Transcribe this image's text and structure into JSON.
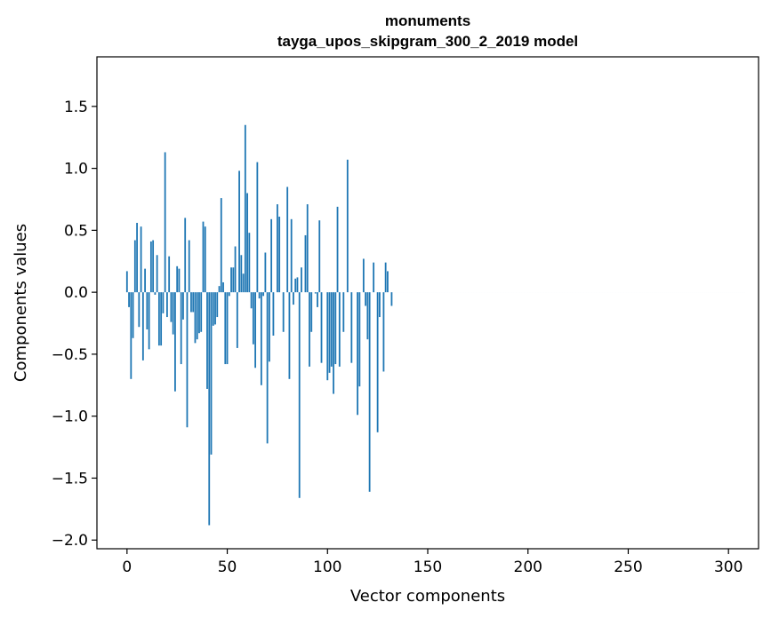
{
  "chart_data": {
    "type": "bar",
    "title": "monuments",
    "subtitle": "tayga_upos_skipgram_300_2_2019 model",
    "xlabel": "Vector components",
    "ylabel": "Components values",
    "xlim": [
      -15,
      315
    ],
    "ylim": [
      -2.07,
      1.9
    ],
    "xticks": [
      0,
      50,
      100,
      150,
      200,
      250,
      300
    ],
    "yticks": [
      -2.0,
      -1.5,
      -1.0,
      -0.5,
      0.0,
      0.5,
      1.0,
      1.5
    ],
    "ytick_labels": [
      "−2.0",
      "−1.5",
      "−1.0",
      "−0.5",
      "0.0",
      "0.5",
      "1.0",
      "1.5"
    ],
    "grid": false,
    "bar_color": "#1f77b4",
    "values": [
      0.17,
      -0.12,
      -0.7,
      -0.37,
      0.42,
      0.56,
      -0.28,
      0.53,
      -0.55,
      0.19,
      -0.3,
      -0.46,
      0.41,
      0.42,
      -0.02,
      0.3,
      -0.43,
      -0.43,
      -0.17,
      1.13,
      -0.2,
      0.29,
      -0.24,
      -0.34,
      -0.8,
      0.21,
      0.19,
      -0.58,
      -0.22,
      0.6,
      -1.09,
      0.42,
      -0.16,
      -0.16,
      -0.41,
      -0.38,
      -0.33,
      -0.32,
      0.57,
      0.53,
      -0.78,
      -1.88,
      -1.31,
      -0.27,
      -0.26,
      -0.2,
      0.05,
      0.76,
      0.08,
      -0.58,
      -0.58,
      -0.03,
      0.2,
      0.2,
      0.37,
      -0.45,
      0.98,
      0.3,
      0.15,
      1.35,
      0.8,
      0.48,
      -0.13,
      -0.42,
      -0.61,
      1.05,
      -0.05,
      -0.75,
      -0.03,
      0.32,
      -1.22,
      -0.56,
      0.59,
      -0.35,
      0.0,
      0.71,
      0.61,
      0.0,
      -0.32,
      0.0,
      0.85,
      -0.7,
      0.59,
      -0.1,
      0.11,
      0.12,
      -1.66,
      0.2,
      0.0,
      0.46,
      0.71,
      -0.6,
      -0.32,
      0.0,
      -0.01,
      -0.12,
      0.58,
      -0.57,
      0.0,
      0.0,
      -0.71,
      -0.65,
      -0.6,
      -0.82,
      -0.58,
      0.69,
      -0.6,
      0.0,
      -0.32,
      0.0,
      1.07,
      0.0,
      -0.57,
      0.0,
      0.0,
      -0.99,
      -0.76,
      0.0,
      0.27,
      -0.11,
      -0.38,
      -1.61,
      0.0,
      0.24,
      0.0,
      -1.13,
      -0.2,
      0.0,
      -0.64,
      0.24,
      0.17,
      0.0,
      -0.11,
      0.0,
      0.0,
      0.0,
      0.0,
      0.0,
      0.0,
      0.0,
      0.0,
      0.0,
      0.0,
      0.0,
      0.0,
      0.0,
      0.0,
      0.0,
      0.0,
      0.0,
      0.0,
      0.0,
      0.0,
      0.0,
      0.0,
      0.0,
      0.0,
      0.0,
      0.0,
      0.0,
      0.0,
      0.0,
      0.0,
      0.0,
      0.0,
      0.0,
      0.0,
      0.0,
      0.0,
      0.0,
      0.0,
      0.0,
      0.0,
      0.0,
      0.0,
      0.0,
      0.0,
      0.0,
      0.0,
      0.0,
      0.0,
      0.0,
      0.0,
      0.0,
      0.0,
      0.0,
      0.0,
      0.0,
      0.0,
      0.0,
      0.0,
      0.0,
      0.0,
      0.0,
      0.0,
      0.0,
      0.0,
      0.0,
      0.0,
      0.0,
      0.0,
      0.0,
      0.0,
      0.0,
      0.0,
      0.0,
      0.0,
      0.0,
      0.0,
      0.0,
      0.0,
      0.0,
      0.0,
      0.0,
      0.0,
      0.0,
      0.0,
      0.0,
      0.0,
      0.0,
      0.0,
      0.0,
      0.0,
      0.0,
      0.0,
      0.0,
      0.0,
      0.0,
      0.0,
      0.0,
      0.0,
      0.0,
      0.0,
      0.0,
      0.0,
      0.0,
      0.0,
      0.0,
      0.0,
      0.0,
      0.0,
      0.0,
      0.0,
      0.0,
      0.0,
      0.0,
      0.0,
      0.0,
      0.0,
      0.0,
      0.0,
      0.0,
      0.0,
      0.0,
      0.0,
      0.0,
      0.0,
      0.0,
      0.0,
      0.0,
      0.0,
      0.0,
      0.0,
      0.0,
      0.0,
      0.0,
      0.0,
      0.0,
      0.0,
      0.0,
      0.0,
      0.0,
      0.0,
      0.0,
      0.0,
      0.0,
      0.0,
      0.0,
      0.0,
      0.0,
      0.0,
      0.0,
      0.0,
      0.0,
      0.0,
      0.0,
      0.0,
      0.0,
      0.0,
      0.0,
      0.0,
      0.0,
      0.0,
      0.0,
      0.0,
      0.0,
      0.0,
      0.0,
      0.0,
      0.0,
      0.0,
      0.0,
      0.0,
      0.0,
      0.0,
      0.0,
      0.0,
      0.0,
      0.0
    ]
  }
}
